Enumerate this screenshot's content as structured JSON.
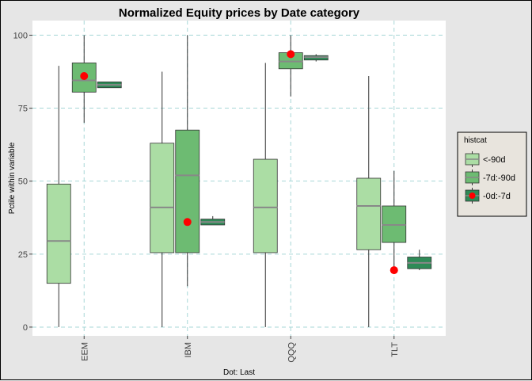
{
  "chart_data": {
    "type": "box",
    "title": "Normalized Equity prices by Date category",
    "xlabel": "Dot: Last",
    "ylabel": "Pctile within variable",
    "ylim": [
      -3,
      105
    ],
    "yticks": [
      0,
      25,
      50,
      75,
      100
    ],
    "categories": [
      "EEM",
      "IBM",
      "QQQ",
      "TLT"
    ],
    "grid": true,
    "legend": {
      "title": "histcat",
      "position": "right",
      "entries": [
        "<-90d",
        "-7d:-90d",
        "-0d:-7d"
      ]
    },
    "series": [
      {
        "name": "<-90d",
        "color": "#abdda4",
        "boxes": [
          {
            "category": "EEM",
            "min": 0,
            "q1": 15,
            "median": 29.5,
            "q3": 49,
            "max": 89.5
          },
          {
            "category": "IBM",
            "min": 0,
            "q1": 25.5,
            "median": 41,
            "q3": 63,
            "max": 87.5
          },
          {
            "category": "QQQ",
            "min": 0,
            "q1": 25.5,
            "median": 41,
            "q3": 57.5,
            "max": 90.5
          },
          {
            "category": "TLT",
            "min": 0,
            "q1": 26.5,
            "median": 41.5,
            "q3": 51,
            "max": 86
          }
        ]
      },
      {
        "name": "-7d:-90d",
        "color": "#6dbb72",
        "boxes": [
          {
            "category": "EEM",
            "min": 70,
            "q1": 80.5,
            "median": 84.5,
            "q3": 90.5,
            "max": 100
          },
          {
            "category": "IBM",
            "min": 14,
            "q1": 25.5,
            "median": 52,
            "q3": 67.5,
            "max": 100
          },
          {
            "category": "QQQ",
            "min": 79,
            "q1": 88.5,
            "median": 91,
            "q3": 94,
            "max": 100
          },
          {
            "category": "TLT",
            "min": 20.5,
            "q1": 29,
            "median": 35,
            "q3": 41.5,
            "max": 53.5
          }
        ]
      },
      {
        "name": "-0d:-7d",
        "color": "#2e8b57",
        "boxes": [
          {
            "category": "EEM",
            "min": 82,
            "q1": 82,
            "median": 83,
            "q3": 84,
            "max": 84
          },
          {
            "category": "IBM",
            "min": 35,
            "q1": 35,
            "median": 36,
            "q3": 37,
            "max": 38
          },
          {
            "category": "QQQ",
            "min": 91,
            "q1": 91.5,
            "median": 92.5,
            "q3": 93,
            "max": 93.5
          },
          {
            "category": "TLT",
            "min": 19.5,
            "q1": 20,
            "median": 22,
            "q3": 24,
            "max": 26.5
          }
        ]
      }
    ],
    "last_points": [
      {
        "category": "EEM",
        "value": 86
      },
      {
        "category": "IBM",
        "value": 36
      },
      {
        "category": "QQQ",
        "value": 93.5
      },
      {
        "category": "TLT",
        "value": 19.5
      }
    ],
    "last_point_color": "#ff0000"
  }
}
